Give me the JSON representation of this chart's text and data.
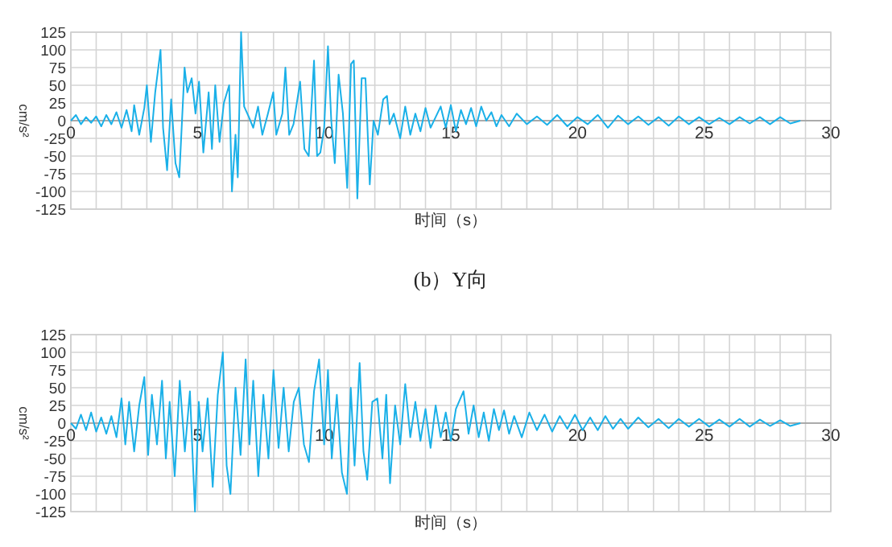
{
  "chart_data": [
    {
      "type": "line",
      "xlabel": "时间（s）",
      "ylabel": "cm/s²",
      "color": "#1ab0e8",
      "grid": true,
      "xlim": [
        0,
        30
      ],
      "ylim": [
        -125,
        125
      ],
      "xticks": [
        0,
        5,
        10,
        15,
        20,
        25,
        30
      ],
      "yticks": [
        125,
        100,
        75,
        50,
        25,
        0,
        -25,
        -50,
        -75,
        -100,
        -125
      ],
      "annotations": [
        "(b）Y向"
      ],
      "x": [
        0,
        0.2,
        0.4,
        0.6,
        0.8,
        1.0,
        1.2,
        1.4,
        1.6,
        1.8,
        2.0,
        2.2,
        2.4,
        2.5,
        2.7,
        2.9,
        3.0,
        3.16,
        3.33,
        3.54,
        3.64,
        3.8,
        3.96,
        4.13,
        4.28,
        4.49,
        4.6,
        4.77,
        4.92,
        5.06,
        5.23,
        5.44,
        5.57,
        5.7,
        5.87,
        6.04,
        6.25,
        6.36,
        6.5,
        6.59,
        6.72,
        6.84,
        7.03,
        7.2,
        7.39,
        7.56,
        7.78,
        7.99,
        8.11,
        8.35,
        8.47,
        8.62,
        8.79,
        9.05,
        9.22,
        9.39,
        9.6,
        9.72,
        9.85,
        10.0,
        10.15,
        10.28,
        10.42,
        10.57,
        10.74,
        10.91,
        11.06,
        11.17,
        11.31,
        11.48,
        11.63,
        11.8,
        11.95,
        12.12,
        12.33,
        12.48,
        12.58,
        12.75,
        13.0,
        13.2,
        13.4,
        13.6,
        13.8,
        14.0,
        14.2,
        14.4,
        14.6,
        14.8,
        15.0,
        15.2,
        15.4,
        15.6,
        15.8,
        16.0,
        16.2,
        16.4,
        16.6,
        16.8,
        17.0,
        17.3,
        17.6,
        18.0,
        18.4,
        18.8,
        19.2,
        19.6,
        20.0,
        20.4,
        20.8,
        21.2,
        21.6,
        22.0,
        22.4,
        22.8,
        23.2,
        23.6,
        24.0,
        24.4,
        24.8,
        25.2,
        25.6,
        26.0,
        26.4,
        26.8,
        27.2,
        27.6,
        28.0,
        28.4,
        28.8
      ],
      "values": [
        0,
        8,
        -5,
        5,
        -3,
        6,
        -8,
        8,
        -5,
        12,
        -10,
        15,
        -15,
        22,
        -20,
        18,
        50,
        -30,
        40,
        100,
        -10,
        -70,
        30,
        -60,
        -80,
        75,
        40,
        60,
        10,
        55,
        -45,
        40,
        -40,
        50,
        -30,
        25,
        50,
        -100,
        -20,
        -80,
        125,
        20,
        5,
        -10,
        20,
        -20,
        10,
        40,
        -20,
        10,
        75,
        -20,
        -5,
        55,
        -40,
        -50,
        85,
        -50,
        -45,
        -10,
        105,
        0,
        -60,
        65,
        10,
        -95,
        80,
        85,
        -110,
        60,
        60,
        -90,
        0,
        -20,
        30,
        35,
        -5,
        10,
        -25,
        20,
        -20,
        10,
        -15,
        18,
        -10,
        5,
        20,
        -10,
        22,
        -15,
        15,
        -5,
        18,
        -8,
        20,
        0,
        12,
        -8,
        8,
        -8,
        10,
        -5,
        6,
        -6,
        8,
        -8,
        5,
        -5,
        8,
        -10,
        7,
        -5,
        6,
        -6,
        5,
        -7,
        6,
        -5,
        5,
        -5,
        4,
        -5,
        5,
        -4,
        5,
        -5,
        5,
        -4,
        0
      ]
    },
    {
      "type": "line",
      "xlabel": "时间（s）",
      "ylabel": "cm/s²",
      "color": "#1ab0e8",
      "grid": true,
      "xlim": [
        0,
        30
      ],
      "ylim": [
        -125,
        125
      ],
      "xticks": [
        0,
        5,
        10,
        15,
        20,
        25,
        30
      ],
      "yticks": [
        125,
        100,
        75,
        50,
        25,
        0,
        -25,
        -50,
        -75,
        -100,
        -125
      ],
      "x": [
        0,
        0.2,
        0.4,
        0.6,
        0.8,
        1.0,
        1.2,
        1.4,
        1.6,
        1.8,
        2.0,
        2.15,
        2.3,
        2.5,
        2.7,
        2.9,
        3.05,
        3.2,
        3.4,
        3.6,
        3.75,
        3.9,
        4.1,
        4.3,
        4.5,
        4.7,
        4.9,
        5.05,
        5.2,
        5.4,
        5.6,
        5.8,
        6.0,
        6.15,
        6.3,
        6.5,
        6.7,
        6.9,
        7.05,
        7.2,
        7.4,
        7.6,
        7.8,
        8.0,
        8.2,
        8.4,
        8.6,
        8.8,
        9.0,
        9.2,
        9.4,
        9.6,
        9.8,
        10.0,
        10.15,
        10.3,
        10.5,
        10.7,
        10.9,
        11.05,
        11.2,
        11.4,
        11.55,
        11.7,
        11.9,
        12.1,
        12.3,
        12.45,
        12.6,
        12.8,
        13.0,
        13.2,
        13.4,
        13.6,
        13.8,
        14.0,
        14.2,
        14.4,
        14.6,
        14.8,
        15.0,
        15.2,
        15.5,
        15.7,
        15.9,
        16.1,
        16.3,
        16.5,
        16.7,
        16.9,
        17.1,
        17.3,
        17.5,
        17.8,
        18.1,
        18.4,
        18.7,
        19.0,
        19.3,
        19.6,
        19.9,
        20.2,
        20.5,
        20.8,
        21.1,
        21.4,
        21.7,
        22.0,
        22.4,
        22.8,
        23.2,
        23.6,
        24.0,
        24.4,
        24.8,
        25.2,
        25.6,
        26.0,
        26.4,
        26.8,
        27.2,
        27.6,
        28.0,
        28.4,
        28.8
      ],
      "values": [
        0,
        -8,
        12,
        -10,
        15,
        -12,
        8,
        -15,
        10,
        -20,
        35,
        -30,
        30,
        -40,
        25,
        65,
        -45,
        40,
        -30,
        60,
        -50,
        30,
        -75,
        60,
        -40,
        45,
        -125,
        30,
        -40,
        35,
        -90,
        40,
        100,
        -60,
        -100,
        50,
        -45,
        90,
        -30,
        60,
        -75,
        40,
        -50,
        75,
        -35,
        50,
        -40,
        30,
        50,
        -30,
        -55,
        45,
        90,
        -30,
        75,
        -50,
        40,
        -70,
        -100,
        50,
        -60,
        85,
        -40,
        -80,
        30,
        35,
        -50,
        40,
        -85,
        25,
        -30,
        55,
        -20,
        30,
        -25,
        20,
        -35,
        25,
        -20,
        15,
        -25,
        20,
        45,
        -15,
        25,
        -20,
        15,
        -25,
        20,
        -10,
        18,
        -15,
        10,
        -20,
        15,
        -10,
        12,
        -12,
        10,
        -8,
        12,
        -10,
        8,
        -10,
        10,
        -8,
        6,
        -8,
        8,
        -6,
        6,
        -7,
        6,
        -5,
        6,
        -5,
        5,
        -5,
        6,
        -5,
        5,
        -4,
        4,
        -4,
        0
      ]
    }
  ]
}
